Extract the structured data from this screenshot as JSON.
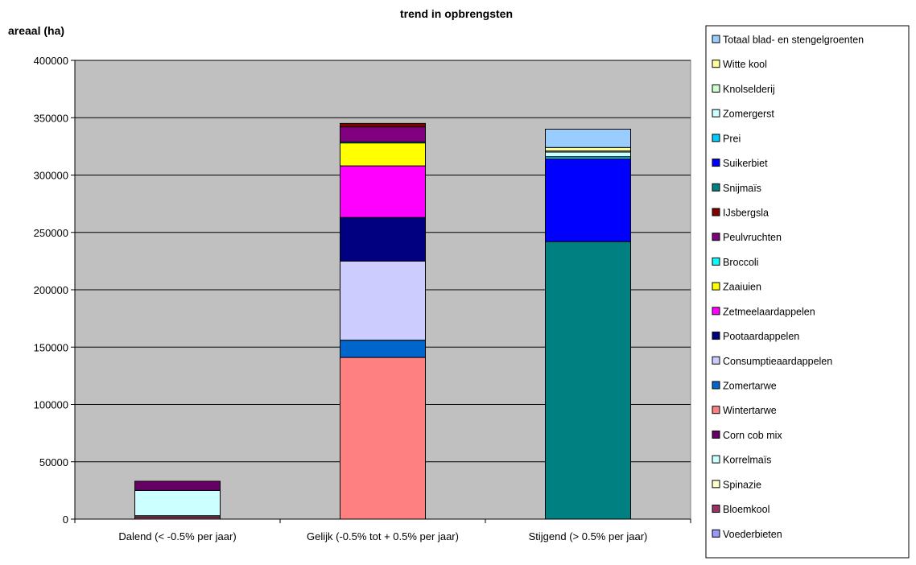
{
  "chart_data": {
    "type": "bar",
    "stacked": true,
    "title": "trend in opbrengsten",
    "xlabel": "",
    "ylabel": "areaal (ha)",
    "ylim": [
      0,
      400000
    ],
    "yticks": [
      0,
      50000,
      100000,
      150000,
      200000,
      250000,
      300000,
      350000,
      400000
    ],
    "grid": true,
    "legend_position": "right",
    "plot_background": "#c0c0c0",
    "categories": [
      "Dalend (< -0.5% per jaar)",
      "Gelijk (-0.5% tot + 0.5% per jaar)",
      "Stijgend  (> 0.5% per jaar)"
    ],
    "series": [
      {
        "name": "Voederbieten",
        "color": "#9999ff",
        "values": [
          0,
          0,
          0
        ]
      },
      {
        "name": "Bloemkool",
        "color": "#993366",
        "values": [
          2000,
          0,
          0
        ]
      },
      {
        "name": "Spinazie",
        "color": "#ffffcc",
        "values": [
          1000,
          0,
          0
        ]
      },
      {
        "name": "Korrelmaïs",
        "color": "#ccffff",
        "values": [
          22000,
          0,
          0
        ]
      },
      {
        "name": "Corn cob mix",
        "color": "#660066",
        "values": [
          8000,
          0,
          0
        ]
      },
      {
        "name": "Wintertarwe",
        "color": "#ff8080",
        "values": [
          0,
          141000,
          0
        ]
      },
      {
        "name": "Zomertarwe",
        "color": "#0066cc",
        "values": [
          0,
          15000,
          0
        ]
      },
      {
        "name": "Consumptieaardappelen",
        "color": "#ccccff",
        "values": [
          0,
          69000,
          0
        ]
      },
      {
        "name": "Pootaardappelen",
        "color": "#000080",
        "values": [
          0,
          38000,
          0
        ]
      },
      {
        "name": "Zetmeelaardappelen",
        "color": "#ff00ff",
        "values": [
          0,
          45000,
          0
        ]
      },
      {
        "name": "Zaaiuien",
        "color": "#ffff00",
        "values": [
          0,
          20000,
          0
        ]
      },
      {
        "name": "Broccoli",
        "color": "#00ffff",
        "values": [
          0,
          1000,
          0
        ]
      },
      {
        "name": "Peulvruchten",
        "color": "#800080",
        "values": [
          0,
          13000,
          0
        ]
      },
      {
        "name": "IJsbergsla",
        "color": "#800000",
        "values": [
          0,
          3000,
          0
        ]
      },
      {
        "name": "Snijmaïs",
        "color": "#008080",
        "values": [
          0,
          0,
          242000
        ]
      },
      {
        "name": "Suikerbiet",
        "color": "#0000ff",
        "values": [
          0,
          0,
          72000
        ]
      },
      {
        "name": "Prei",
        "color": "#00ccff",
        "values": [
          0,
          0,
          2000
        ]
      },
      {
        "name": "Zomergerst",
        "color": "#ccffff",
        "values": [
          0,
          0,
          4000
        ]
      },
      {
        "name": "Knolselderij",
        "color": "#ccffcc",
        "values": [
          0,
          0,
          1000
        ]
      },
      {
        "name": "Witte kool",
        "color": "#ffff99",
        "values": [
          0,
          0,
          3000
        ]
      },
      {
        "name": "Totaal blad- en stengelgroenten",
        "color": "#99ccff",
        "values": [
          0,
          0,
          16000
        ]
      }
    ]
  }
}
